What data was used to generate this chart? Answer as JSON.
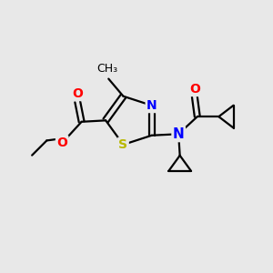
{
  "background_color": "#e8e8e8",
  "atom_color_S": "#b8b800",
  "atom_color_N": "#0000ff",
  "atom_color_O": "#ff0000",
  "atom_color_C": "#000000",
  "bond_color": "#000000",
  "figsize": [
    3.0,
    3.0
  ],
  "dpi": 100,
  "xlim": [
    0,
    10
  ],
  "ylim": [
    0,
    10
  ],
  "font_size": 10,
  "bond_lw": 1.6
}
